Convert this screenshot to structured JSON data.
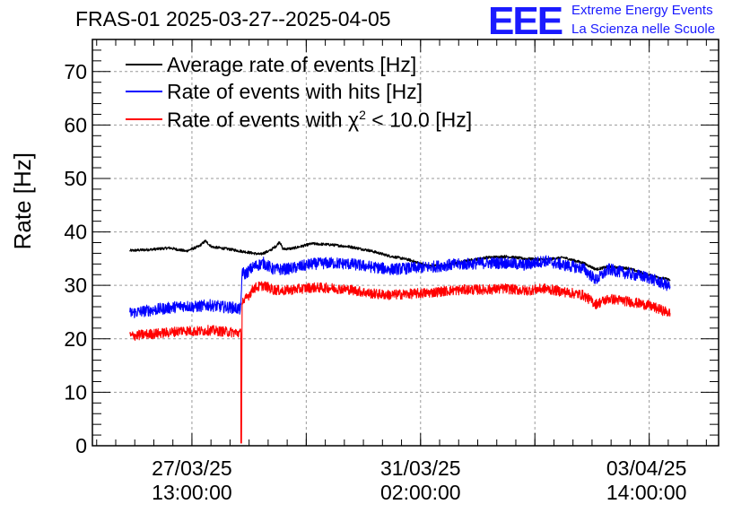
{
  "header": {
    "title": "FRAS-01 2025-03-27--2025-04-05",
    "logo_text": "EEE",
    "brand_line1": "Extreme Energy Events",
    "brand_line2": "La Scienza nelle Scuole"
  },
  "colors": {
    "average": "#000000",
    "hits": "#0000ff",
    "chi2": "#ff0000",
    "brand": "#1a1aff"
  },
  "chart_data": {
    "type": "line",
    "title": "FRAS-01 2025-03-27--2025-04-05",
    "xlabel": "",
    "ylabel": "Rate [Hz]",
    "ylim": [
      0,
      76
    ],
    "yticks": [
      0,
      10,
      20,
      30,
      40,
      50,
      60,
      70
    ],
    "xlim_days": [
      0,
      9.7
    ],
    "x_unit": "days since 2025-03-26 00:00",
    "xticks": [
      {
        "x": 1.5417,
        "label_date": "27/03/25",
        "label_time": "13:00:00"
      },
      {
        "x": 5.0833,
        "label_date": "31/03/25",
        "label_time": "02:00:00"
      },
      {
        "x": 8.5833,
        "label_date": "03/04/25",
        "label_time": "14:00:00"
      }
    ],
    "grid": true,
    "legend": {
      "position": "top-left",
      "entries": [
        {
          "name": "Average rate of events [Hz]",
          "color": "#000000"
        },
        {
          "name": "Rate of events with hits [Hz]",
          "color": "#0000ff"
        },
        {
          "name": "Rate of events with χ² < 10.0 [Hz]",
          "color": "#ff0000",
          "prefix": "Rate of events with ",
          "chi": "χ",
          "sup": "2",
          "suffix": " < 10.0 [Hz]"
        }
      ]
    },
    "series": [
      {
        "name": "Average rate of events [Hz]",
        "color": "#000000",
        "noise": 0.25,
        "x": [
          0.58,
          0.9,
          1.2,
          1.45,
          1.65,
          1.75,
          1.85,
          2.1,
          2.4,
          2.6,
          2.75,
          2.85,
          2.9,
          2.95,
          3.1,
          3.4,
          3.7,
          4.0,
          4.3,
          4.6,
          4.9,
          5.2,
          5.5,
          5.8,
          6.1,
          6.4,
          6.7,
          7.0,
          7.3,
          7.6,
          7.8,
          8.0,
          8.3,
          8.6,
          8.95
        ],
        "y": [
          36.5,
          36.7,
          37.0,
          36.4,
          37.3,
          38.3,
          37.2,
          36.8,
          36.2,
          35.8,
          36.5,
          37.4,
          38.2,
          36.8,
          36.9,
          37.8,
          37.6,
          37.2,
          36.5,
          35.5,
          34.8,
          33.6,
          33.8,
          34.6,
          35.2,
          35.4,
          35.0,
          34.8,
          35.2,
          34.2,
          33.0,
          33.5,
          33.2,
          32.0,
          31.0
        ]
      },
      {
        "name": "Rate of events with hits [Hz]",
        "color": "#0000ff",
        "noise": 1.1,
        "x": [
          0.58,
          0.8,
          1.0,
          1.2,
          1.4,
          1.6,
          1.8,
          2.0,
          2.2,
          2.3,
          2.32,
          2.35,
          2.5,
          2.65,
          2.8,
          2.95,
          3.1,
          3.4,
          3.7,
          4.0,
          4.3,
          4.6,
          4.9,
          5.2,
          5.5,
          5.8,
          6.1,
          6.4,
          6.7,
          7.0,
          7.3,
          7.6,
          7.8,
          8.0,
          8.3,
          8.6,
          8.95
        ],
        "y": [
          24.8,
          25.2,
          25.5,
          25.8,
          26.2,
          26.0,
          26.3,
          26.0,
          25.8,
          25.5,
          33.0,
          32.0,
          33.5,
          34.2,
          33.0,
          33.0,
          33.2,
          34.0,
          34.2,
          34.0,
          33.5,
          33.0,
          33.2,
          33.4,
          33.8,
          34.0,
          34.2,
          34.2,
          33.8,
          34.6,
          33.8,
          33.2,
          31.0,
          33.0,
          32.2,
          31.5,
          29.8
        ]
      },
      {
        "name": "Rate of events with χ² < 10.0 [Hz]",
        "color": "#ff0000",
        "noise": 0.95,
        "x": [
          0.58,
          0.8,
          1.0,
          1.2,
          1.4,
          1.6,
          1.8,
          2.0,
          2.2,
          2.3,
          2.3,
          2.31,
          2.32,
          2.35,
          2.5,
          2.65,
          2.8,
          2.95,
          3.1,
          3.4,
          3.7,
          4.0,
          4.3,
          4.6,
          4.9,
          5.2,
          5.5,
          5.8,
          6.1,
          6.4,
          6.7,
          7.0,
          7.3,
          7.6,
          7.8,
          8.0,
          8.3,
          8.6,
          8.95
        ],
        "y": [
          20.5,
          20.8,
          21.0,
          21.2,
          21.6,
          21.4,
          21.6,
          21.4,
          21.2,
          21.0,
          0.5,
          0.5,
          27.5,
          27.0,
          29.5,
          30.0,
          29.2,
          29.0,
          29.2,
          29.6,
          29.5,
          29.2,
          28.5,
          28.2,
          28.4,
          28.6,
          29.0,
          29.2,
          29.2,
          29.4,
          29.0,
          29.4,
          28.8,
          28.2,
          26.5,
          27.5,
          27.0,
          26.3,
          24.8
        ]
      }
    ]
  }
}
